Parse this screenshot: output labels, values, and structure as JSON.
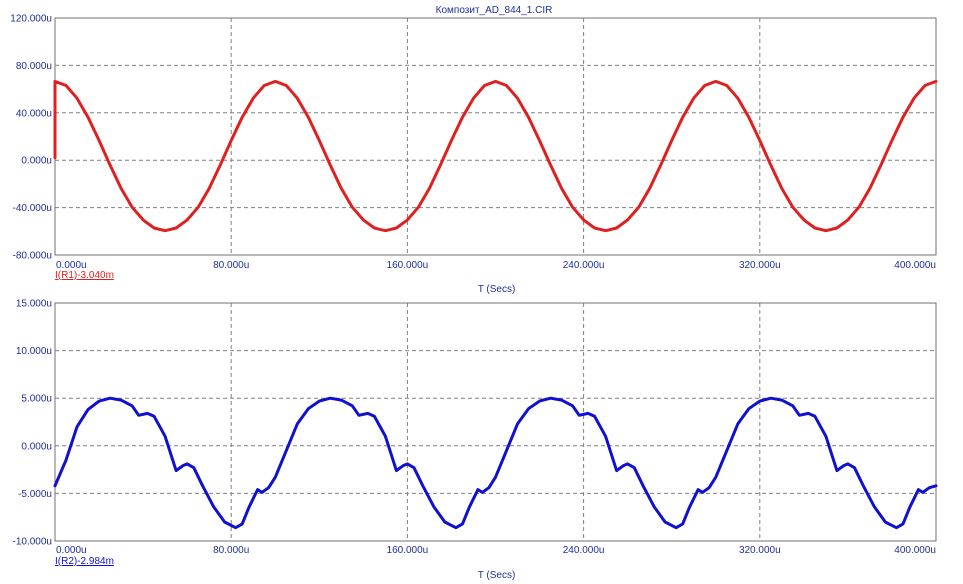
{
  "window": {
    "title": "Композит_AD_844_1.CIR"
  },
  "chart_data": [
    {
      "type": "line",
      "title": "Композит_AD_844_1.CIR",
      "xlabel": "T (Secs)",
      "ylabel": "",
      "xlim": [
        0,
        400
      ],
      "ylim": [
        -80,
        120
      ],
      "x_ticks": [
        "0.000u",
        "80.000u",
        "160.000u",
        "240.000u",
        "320.000u",
        "400.000u"
      ],
      "y_ticks": [
        "-80.000u",
        "-40.000u",
        "0.000u",
        "40.000u",
        "80.000u",
        "120.000u"
      ],
      "grid": true,
      "series": [
        {
          "name": "I(R1)-3.040m",
          "color": "#e02020",
          "x": [
            0,
            5,
            10,
            15,
            20,
            25,
            30,
            35,
            40,
            45,
            50,
            55,
            60,
            65,
            70,
            75,
            80,
            85,
            90,
            95,
            100,
            105,
            110,
            115,
            120,
            125,
            130,
            135,
            140,
            145,
            150,
            155,
            160,
            165,
            170,
            175,
            180,
            185,
            190,
            195,
            200,
            205,
            210,
            215,
            220,
            225,
            230,
            235,
            240,
            245,
            250,
            255,
            260,
            265,
            270,
            275,
            280,
            285,
            290,
            295,
            300,
            305,
            310,
            315,
            320,
            325,
            330,
            335,
            340,
            345,
            350,
            355,
            360,
            365,
            370,
            375,
            380,
            385,
            390,
            395,
            400
          ],
          "values": [
            66.5,
            63.0,
            52.3,
            36.3,
            16.6,
            -4.1,
            -23.8,
            -39.7,
            -50.4,
            -57.2,
            -59.5,
            -57.2,
            -50.4,
            -39.7,
            -23.8,
            -4.1,
            16.6,
            36.3,
            52.3,
            63.0,
            66.5,
            63.0,
            52.3,
            36.3,
            16.6,
            -4.1,
            -23.8,
            -39.7,
            -50.4,
            -57.2,
            -59.5,
            -57.2,
            -50.4,
            -39.7,
            -23.8,
            -4.1,
            16.6,
            36.3,
            52.3,
            63.0,
            66.5,
            63.0,
            52.3,
            36.3,
            16.6,
            -4.1,
            -23.8,
            -39.7,
            -50.4,
            -57.2,
            -59.5,
            -57.2,
            -50.4,
            -39.7,
            -23.8,
            -4.1,
            16.6,
            36.3,
            52.3,
            63.0,
            66.5,
            63.0,
            52.3,
            36.3,
            16.6,
            -4.1,
            -23.8,
            -39.7,
            -50.4,
            -57.2,
            -59.5,
            -57.2,
            -50.4,
            -39.7,
            -23.8,
            -4.1,
            16.6,
            36.3,
            52.3,
            63.0,
            66.5
          ]
        }
      ]
    },
    {
      "type": "line",
      "title": "",
      "xlabel": "T (Secs)",
      "ylabel": "",
      "xlim": [
        0,
        400
      ],
      "ylim": [
        -10,
        15
      ],
      "x_ticks": [
        "0.000u",
        "80.000u",
        "160.000u",
        "240.000u",
        "320.000u",
        "400.000u"
      ],
      "y_ticks": [
        "-10.000u",
        "-5.000u",
        "0.000u",
        "5.000u",
        "10.000u",
        "15.000u"
      ],
      "grid": true,
      "series": [
        {
          "name": "I(R2)-2.984m",
          "color": "#1010d0",
          "x": [
            0,
            5,
            10,
            15,
            20,
            25,
            30,
            35,
            38,
            42,
            45,
            50,
            55,
            58,
            60,
            63,
            67,
            72,
            77,
            82,
            85,
            88,
            92,
            94,
            97,
            100,
            105,
            110,
            115,
            120,
            125,
            130,
            135,
            138,
            142,
            145,
            150,
            155,
            158,
            160,
            163,
            167,
            172,
            177,
            182,
            185,
            188,
            192,
            194,
            197,
            200,
            205,
            210,
            215,
            220,
            225,
            230,
            235,
            238,
            242,
            245,
            250,
            255,
            258,
            260,
            263,
            267,
            272,
            277,
            282,
            285,
            288,
            292,
            294,
            297,
            300,
            305,
            310,
            315,
            320,
            325,
            330,
            335,
            338,
            342,
            345,
            350,
            355,
            358,
            360,
            363,
            367,
            372,
            377,
            382,
            385,
            388,
            392,
            394,
            397,
            400
          ],
          "values": [
            -4.2,
            -1.5,
            2.0,
            3.8,
            4.7,
            5.0,
            4.8,
            4.2,
            3.2,
            3.4,
            3.1,
            1.0,
            -2.6,
            -2.1,
            -1.9,
            -2.3,
            -4.2,
            -6.4,
            -8.0,
            -8.6,
            -8.2,
            -6.5,
            -4.6,
            -4.9,
            -4.4,
            -3.3,
            -0.5,
            2.3,
            3.9,
            4.7,
            5.0,
            4.8,
            4.2,
            3.2,
            3.4,
            3.1,
            1.0,
            -2.6,
            -2.1,
            -1.9,
            -2.3,
            -4.2,
            -6.4,
            -8.0,
            -8.6,
            -8.2,
            -6.5,
            -4.6,
            -4.9,
            -4.4,
            -3.3,
            -0.5,
            2.3,
            3.9,
            4.7,
            5.0,
            4.8,
            4.2,
            3.2,
            3.4,
            3.1,
            1.0,
            -2.6,
            -2.1,
            -1.9,
            -2.3,
            -4.2,
            -6.4,
            -8.0,
            -8.6,
            -8.2,
            -6.5,
            -4.6,
            -4.9,
            -4.4,
            -3.3,
            -0.5,
            2.3,
            3.9,
            4.7,
            5.0,
            4.8,
            4.2,
            3.2,
            3.4,
            3.1,
            1.0,
            -2.6,
            -2.1,
            -1.9,
            -2.3,
            -4.2,
            -6.4,
            -8.0,
            -8.6,
            -8.2,
            -6.5,
            -4.6,
            -4.9,
            -4.4,
            -4.2
          ]
        }
      ]
    }
  ]
}
